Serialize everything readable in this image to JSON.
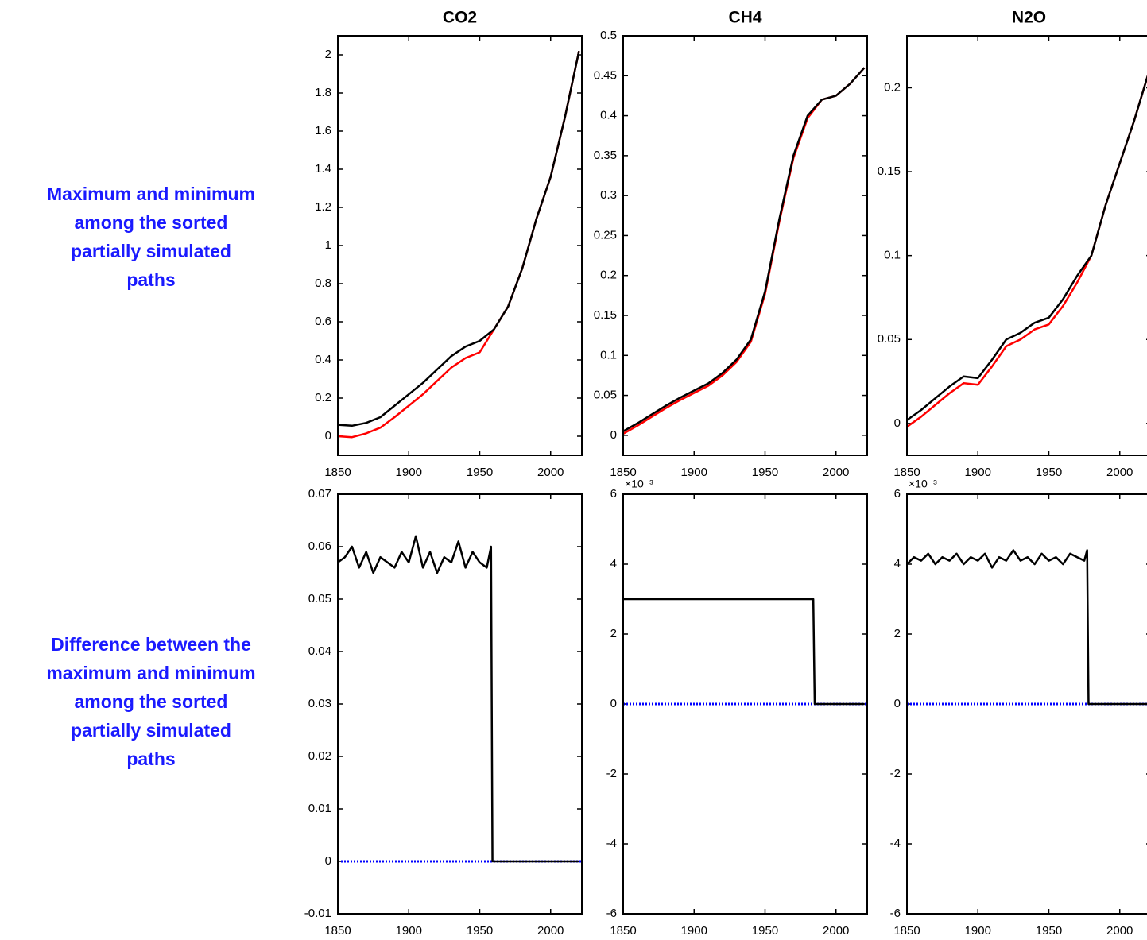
{
  "row_labels": [
    "Maximum and minimum among the sorted partially simulated paths",
    "Difference between the maximum and minimum among the sorted partially simulated paths"
  ],
  "chart_data": [
    {
      "type": "line",
      "title": "CO2",
      "x": [
        1850,
        1860,
        1870,
        1880,
        1890,
        1900,
        1910,
        1920,
        1930,
        1940,
        1950,
        1960,
        1970,
        1980,
        1990,
        2000,
        2010,
        2020
      ],
      "series": [
        {
          "color": "#ff0000",
          "values": [
            0.0,
            -0.005,
            0.015,
            0.045,
            0.1,
            0.16,
            0.22,
            0.29,
            0.36,
            0.41,
            0.44,
            0.56,
            0.68,
            0.88,
            1.14,
            1.36,
            1.67,
            2.02
          ]
        },
        {
          "color": "#000000",
          "values": [
            0.06,
            0.055,
            0.07,
            0.1,
            0.16,
            0.22,
            0.28,
            0.35,
            0.42,
            0.47,
            0.5,
            0.56,
            0.68,
            0.88,
            1.14,
            1.36,
            1.67,
            2.02
          ]
        }
      ],
      "xlim": [
        1850,
        2022
      ],
      "ylim": [
        -0.1,
        2.1
      ],
      "xticks": [
        1850,
        1900,
        1950,
        2000
      ],
      "yticks": [
        0,
        0.2,
        0.4,
        0.6,
        0.8,
        1,
        1.2,
        1.4,
        1.6,
        1.8,
        2
      ]
    },
    {
      "type": "line",
      "title": "CH4",
      "x": [
        1850,
        1860,
        1870,
        1880,
        1890,
        1900,
        1910,
        1920,
        1930,
        1940,
        1950,
        1960,
        1970,
        1980,
        1990,
        2000,
        2010,
        2020
      ],
      "series": [
        {
          "color": "#ff0000",
          "values": [
            0.002,
            0.012,
            0.023,
            0.034,
            0.044,
            0.053,
            0.062,
            0.075,
            0.092,
            0.117,
            0.177,
            0.267,
            0.347,
            0.397,
            0.42,
            0.425,
            0.44,
            0.46
          ]
        },
        {
          "color": "#000000",
          "values": [
            0.005,
            0.015,
            0.026,
            0.037,
            0.047,
            0.056,
            0.065,
            0.078,
            0.095,
            0.12,
            0.18,
            0.27,
            0.35,
            0.4,
            0.42,
            0.425,
            0.44,
            0.46
          ]
        }
      ],
      "xlim": [
        1850,
        2022
      ],
      "ylim": [
        -0.025,
        0.5
      ],
      "xticks": [
        1850,
        1900,
        1950,
        2000
      ],
      "yticks": [
        0,
        0.05,
        0.1,
        0.15,
        0.2,
        0.25,
        0.3,
        0.35,
        0.4,
        0.45,
        0.5
      ]
    },
    {
      "type": "line",
      "title": "N2O",
      "x": [
        1850,
        1860,
        1870,
        1880,
        1890,
        1900,
        1910,
        1920,
        1930,
        1940,
        1950,
        1960,
        1970,
        1980,
        1990,
        2000,
        2010,
        2020
      ],
      "series": [
        {
          "color": "#ff0000",
          "values": [
            -0.002,
            0.004,
            0.011,
            0.018,
            0.024,
            0.023,
            0.034,
            0.046,
            0.05,
            0.056,
            0.059,
            0.07,
            0.084,
            0.1,
            0.13,
            0.155,
            0.18,
            0.208
          ]
        },
        {
          "color": "#000000",
          "values": [
            0.002,
            0.008,
            0.015,
            0.022,
            0.028,
            0.027,
            0.038,
            0.05,
            0.054,
            0.06,
            0.063,
            0.074,
            0.088,
            0.1,
            0.13,
            0.155,
            0.18,
            0.208
          ]
        }
      ],
      "xlim": [
        1850,
        2022
      ],
      "ylim": [
        -0.019,
        0.231
      ],
      "xticks": [
        1850,
        1900,
        1950,
        2000
      ],
      "yticks": [
        0,
        0.05,
        0.1,
        0.15,
        0.2
      ]
    },
    {
      "type": "line",
      "x": [
        1850,
        1855,
        1860,
        1865,
        1870,
        1875,
        1880,
        1885,
        1890,
        1895,
        1900,
        1905,
        1910,
        1915,
        1920,
        1925,
        1930,
        1935,
        1940,
        1945,
        1950,
        1955,
        1958,
        1959,
        1970,
        1980,
        1990,
        2000,
        2010,
        2020
      ],
      "series": [
        {
          "color": "#000000",
          "values": [
            0.057,
            0.058,
            0.06,
            0.056,
            0.059,
            0.055,
            0.058,
            0.057,
            0.056,
            0.059,
            0.057,
            0.062,
            0.056,
            0.059,
            0.055,
            0.058,
            0.057,
            0.061,
            0.056,
            0.059,
            0.057,
            0.056,
            0.06,
            0,
            0,
            0,
            0,
            0,
            0,
            0
          ]
        }
      ],
      "reference_line": {
        "value": 0,
        "color": "#0000ff"
      },
      "xlim": [
        1850,
        2022
      ],
      "ylim": [
        -0.01,
        0.07
      ],
      "xticks": [
        1850,
        1900,
        1950,
        2000
      ],
      "yticks": [
        -0.01,
        0,
        0.01,
        0.02,
        0.03,
        0.04,
        0.05,
        0.06,
        0.07
      ]
    },
    {
      "type": "line",
      "x": [
        1850,
        1984,
        1985,
        2020
      ],
      "series": [
        {
          "color": "#000000",
          "values": [
            3,
            3,
            0,
            0
          ]
        }
      ],
      "reference_line": {
        "value": 0,
        "color": "#0000ff"
      },
      "y_multiplier": "×10⁻³",
      "xlim": [
        1850,
        2022
      ],
      "ylim": [
        -6,
        6
      ],
      "xticks": [
        1850,
        1900,
        1950,
        2000
      ],
      "yticks": [
        -6,
        -4,
        -2,
        0,
        2,
        4,
        6
      ]
    },
    {
      "type": "line",
      "x": [
        1850,
        1855,
        1860,
        1865,
        1870,
        1875,
        1880,
        1885,
        1890,
        1895,
        1900,
        1905,
        1910,
        1915,
        1920,
        1925,
        1930,
        1935,
        1940,
        1945,
        1950,
        1955,
        1960,
        1965,
        1970,
        1975,
        1977,
        1978,
        1990,
        2000,
        2010,
        2020
      ],
      "series": [
        {
          "color": "#000000",
          "values": [
            4.0,
            4.2,
            4.1,
            4.3,
            4.0,
            4.2,
            4.1,
            4.3,
            4.0,
            4.2,
            4.1,
            4.3,
            3.9,
            4.2,
            4.1,
            4.4,
            4.1,
            4.2,
            4.0,
            4.3,
            4.1,
            4.2,
            4.0,
            4.3,
            4.2,
            4.1,
            4.4,
            0,
            0,
            0,
            0,
            0
          ]
        }
      ],
      "reference_line": {
        "value": 0,
        "color": "#0000ff"
      },
      "y_multiplier": "×10⁻³",
      "xlim": [
        1850,
        2022
      ],
      "ylim": [
        -6,
        6
      ],
      "xticks": [
        1850,
        1900,
        1950,
        2000
      ],
      "yticks": [
        -6,
        -4,
        -2,
        0,
        2,
        4,
        6
      ]
    }
  ]
}
